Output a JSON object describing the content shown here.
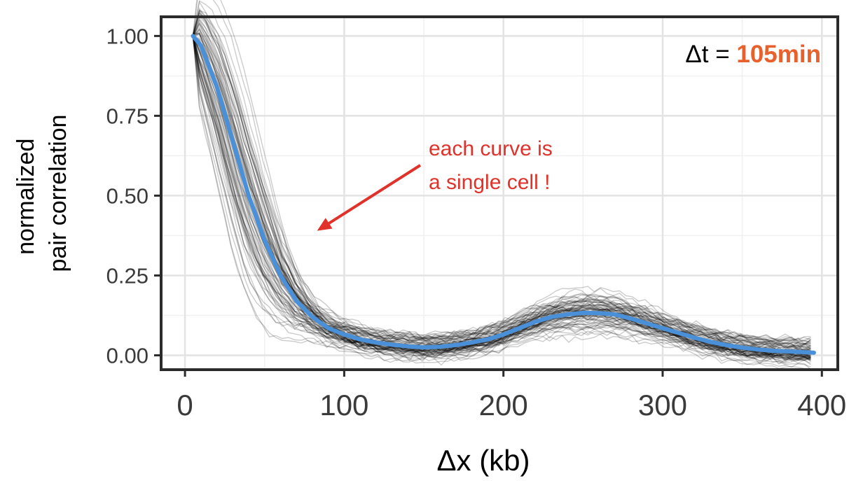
{
  "chart_data": {
    "type": "line",
    "xlabel": "Δx (kb)",
    "ylabel_lines": [
      "normalized",
      "pair correlation"
    ],
    "xlim": [
      -15,
      410
    ],
    "ylim": [
      -0.045,
      1.06
    ],
    "x_ticks": [
      0,
      100,
      200,
      300,
      400
    ],
    "x_tick_labels": [
      "0",
      "100",
      "200",
      "300",
      "400"
    ],
    "y_ticks": [
      0,
      0.25,
      0.5,
      0.75,
      1.0
    ],
    "y_tick_labels": [
      "0.00",
      "0.25",
      "0.50",
      "0.75",
      "1.00"
    ],
    "grid": true,
    "dt_annotation": {
      "prefix": "Δt = ",
      "value": "105min",
      "value_color": "#e8602c"
    },
    "callout": {
      "lines": [
        "each curve is",
        "a single cell !"
      ],
      "color": "#e0322a",
      "arrow_target": {
        "x": 83,
        "y": 0.39
      }
    },
    "mean_curve": {
      "color": "#4a90d9",
      "x": [
        5,
        10,
        20,
        30,
        40,
        50,
        60,
        70,
        80,
        90,
        100,
        110,
        120,
        130,
        140,
        150,
        160,
        170,
        180,
        190,
        200,
        210,
        220,
        230,
        240,
        250,
        260,
        270,
        280,
        290,
        300,
        310,
        320,
        330,
        340,
        350,
        360,
        370,
        380,
        395
      ],
      "y": [
        1.0,
        0.97,
        0.84,
        0.67,
        0.5,
        0.36,
        0.25,
        0.17,
        0.12,
        0.085,
        0.065,
        0.05,
        0.04,
        0.033,
        0.028,
        0.025,
        0.027,
        0.032,
        0.04,
        0.05,
        0.065,
        0.085,
        0.105,
        0.12,
        0.128,
        0.133,
        0.132,
        0.128,
        0.115,
        0.1,
        0.085,
        0.07,
        0.055,
        0.042,
        0.032,
        0.024,
        0.018,
        0.014,
        0.012,
        0.008
      ]
    },
    "single_cells": {
      "count": 80,
      "color": "#000000",
      "alpha": 0.2
    }
  }
}
